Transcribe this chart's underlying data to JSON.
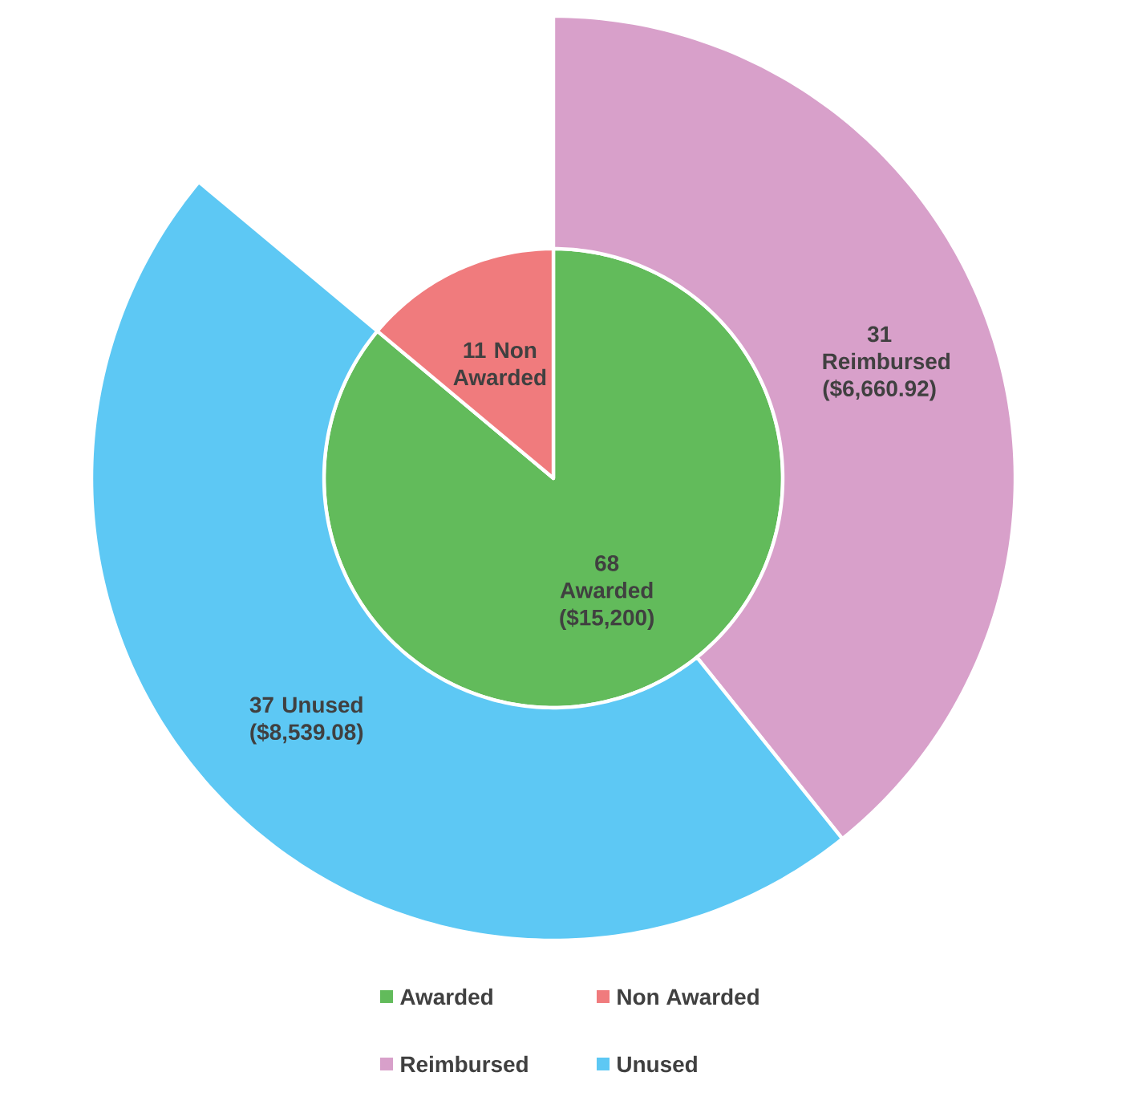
{
  "chart_data": {
    "type": "pie",
    "categories": [
      "Awarded",
      "Non Awarded",
      "Reimbursed",
      "Unused"
    ],
    "colors": [
      "#62bb5b",
      "#f07b7d",
      "#d8a0ca",
      "#5dc8f4"
    ],
    "series": [
      {
        "values": [
          68,
          11,
          null,
          null
        ],
        "value_labels": [
          "68 Awarded ($15,200)",
          "11 Non Awarded",
          null,
          null
        ]
      },
      {
        "type": "donut",
        "values": [
          null,
          null,
          31,
          37
        ],
        "value_labels": [
          null,
          null,
          "31 Reimbursed ($6,660.92)",
          "37 Unused ($8,539.08)"
        ]
      }
    ],
    "legend": "bottom"
  }
}
